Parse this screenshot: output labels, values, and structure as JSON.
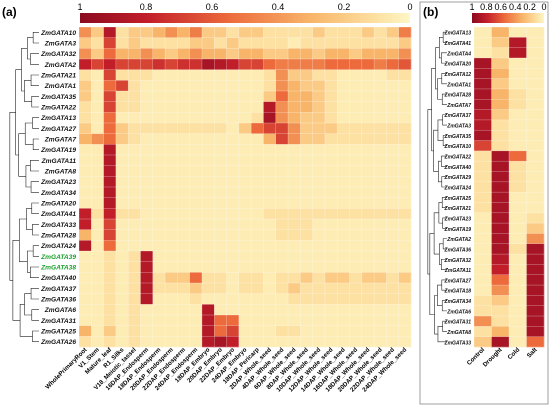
{
  "panel_a": {
    "label": "(a)",
    "colorbar_ticks": [
      "1",
      "0.8",
      "0.6",
      "0.4",
      "0.2",
      "0"
    ]
  },
  "panel_b": {
    "label": "(b)",
    "colorbar_ticks": [
      "1",
      "0.8",
      "0.6",
      "0.4",
      "0.2",
      "0"
    ]
  },
  "colors": {
    "low": "#fdf6c6",
    "mid_low": "#fde1a2",
    "mid": "#f8b56a",
    "mid_high": "#ec6a3c",
    "high": "#b8162a",
    "max": "#8b0a1f",
    "highlight_label": "#1aa02a"
  },
  "chart_data": [
    {
      "type": "heatmap",
      "panel": "(a)",
      "colorbar_ticks": [
        1,
        0.8,
        0.6,
        0.4,
        0.2,
        0
      ],
      "rows": [
        "ZmGATA10",
        "ZmGATA3",
        "ZmGATA32",
        "ZmGATA2",
        "ZmGATA21",
        "ZmGATA1",
        "ZmGATA35",
        "ZmGATA22",
        "ZmGATA13",
        "ZmGATA27",
        "ZmGATA7",
        "ZmGATA19",
        "ZmGATA11",
        "ZmGATA8",
        "ZmGATA23",
        "ZmGATA34",
        "ZmGATA20",
        "ZmGATA41",
        "ZmGATA33",
        "ZmGATA28",
        "ZmGATA24",
        "ZmGATA39",
        "ZmGATA38",
        "ZmGATA40",
        "ZmGATA37",
        "ZmGATA36",
        "ZmGATA6",
        "ZmGATA31",
        "ZmGATA25",
        "ZmGATA26"
      ],
      "highlight_rows": [
        "ZmGATA39",
        "ZmGATA38"
      ],
      "columns": [
        "WholePrimaryRoot",
        "V1_Stem",
        "Mature_leaf",
        "R1_Silks",
        "V18_Meiotic_tassel",
        "16DAP_Endosperm",
        "18DAP_Endosperm",
        "20DAP_Endosperm",
        "22DAP_Endosperm",
        "24DAP_Endosperm",
        "18DAP_Embryo",
        "20DAP_Embryo",
        "22DAP_Embryo",
        "24DAP_Embryo",
        "18DAP_Pericarp",
        "2DAP_Whole_seed",
        "4DAP_Whole_seed",
        "6DAP_Whole_seed",
        "8DAP_Whole_seed",
        "10DAP_Whole_seed",
        "12DAP_Whole_seed",
        "14DAP_Whole_seed",
        "16DAP_Whole_seed",
        "18DAP_Whole_seed",
        "20DAP_Whole_seed",
        "22DAP_Whole_seed",
        "24DAP_Whole_seed"
      ],
      "values": [
        [
          0.5,
          0.3,
          0.85,
          0.2,
          0.3,
          0.3,
          0.4,
          0.5,
          0.4,
          0.55,
          0.3,
          0.3,
          0.2,
          0.3,
          0.3,
          0.2,
          0.2,
          0.2,
          0.2,
          0.3,
          0.2,
          0.2,
          0.2,
          0.3,
          0.2,
          0.3,
          0.55
        ],
        [
          0.3,
          0.2,
          0.7,
          0.2,
          0.3,
          0.2,
          0.2,
          0.2,
          0.2,
          0.3,
          0.3,
          0.2,
          0.3,
          0.2,
          0.2,
          0.2,
          0.2,
          0.1,
          0.2,
          0.2,
          0.2,
          0.2,
          0.2,
          0.2,
          0.2,
          0.2,
          0.3
        ],
        [
          0.5,
          0.3,
          0.6,
          0.4,
          0.4,
          0.5,
          0.4,
          0.3,
          0.4,
          0.5,
          0.4,
          0.4,
          0.3,
          0.4,
          0.4,
          0.3,
          0.3,
          0.4,
          0.4,
          0.3,
          0.4,
          0.4,
          0.3,
          0.4,
          0.4,
          0.4,
          0.5
        ],
        [
          0.8,
          0.7,
          0.8,
          0.7,
          0.7,
          0.7,
          0.75,
          0.7,
          0.75,
          0.75,
          0.9,
          0.85,
          0.8,
          0.7,
          0.7,
          0.6,
          0.55,
          0.55,
          0.55,
          0.55,
          0.6,
          0.6,
          0.6,
          0.6,
          0.55,
          0.6,
          0.65
        ],
        [
          0.2,
          0.1,
          0.7,
          0.2,
          0.2,
          0.2,
          0.1,
          0.1,
          0.1,
          0.1,
          0.1,
          0.1,
          0.1,
          0.1,
          0.1,
          0.2,
          0.5,
          0.3,
          0.3,
          0.2,
          0.2,
          0.1,
          0.1,
          0.1,
          0.1,
          0.2,
          0.2
        ],
        [
          0.3,
          0.1,
          0.6,
          0.7,
          0.2,
          0.1,
          0.1,
          0.1,
          0.1,
          0.1,
          0.1,
          0.1,
          0.1,
          0.1,
          0.1,
          0.2,
          0.5,
          0.4,
          0.3,
          0.3,
          0.2,
          0.1,
          0.1,
          0.1,
          0.1,
          0.1,
          0.1
        ],
        [
          0.3,
          0.1,
          0.7,
          0.2,
          0.2,
          0.1,
          0.1,
          0.1,
          0.1,
          0.1,
          0.1,
          0.1,
          0.1,
          0.1,
          0.1,
          0.3,
          0.6,
          0.4,
          0.4,
          0.3,
          0.2,
          0.1,
          0.1,
          0.1,
          0.1,
          0.1,
          0.1
        ],
        [
          0.2,
          0.1,
          0.7,
          0.2,
          0.2,
          0.1,
          0.1,
          0.1,
          0.1,
          0.1,
          0.1,
          0.1,
          0.1,
          0.1,
          0.1,
          0.85,
          0.5,
          0.4,
          0.4,
          0.3,
          0.2,
          0.1,
          0.1,
          0.1,
          0.1,
          0.1,
          0.1
        ],
        [
          0.2,
          0.1,
          0.6,
          0.1,
          0.1,
          0.1,
          0.1,
          0.1,
          0.1,
          0.1,
          0.1,
          0.1,
          0.1,
          0.1,
          0.2,
          0.9,
          0.5,
          0.4,
          0.3,
          0.3,
          0.2,
          0.1,
          0.1,
          0.1,
          0.1,
          0.1,
          0.1
        ],
        [
          0.3,
          0.1,
          0.6,
          0.3,
          0.2,
          0.2,
          0.2,
          0.2,
          0.2,
          0.2,
          0.2,
          0.2,
          0.1,
          0.3,
          0.6,
          0.7,
          0.7,
          0.5,
          0.3,
          0.3,
          0.3,
          0.2,
          0.2,
          0.2,
          0.2,
          0.2,
          0.2
        ],
        [
          0.4,
          0.5,
          0.6,
          0.3,
          0.2,
          0.1,
          0.1,
          0.1,
          0.1,
          0.1,
          0.1,
          0.1,
          0.1,
          0.1,
          0.1,
          0.4,
          0.7,
          0.5,
          0.3,
          0.3,
          0.2,
          0.2,
          0.2,
          0.2,
          0.2,
          0.2,
          0.2
        ],
        [
          0.1,
          0.1,
          0.85,
          0.1,
          0.1,
          0.1,
          0.1,
          0.1,
          0.1,
          0.1,
          0.1,
          0.1,
          0.1,
          0.1,
          0.1,
          0.1,
          0.1,
          0.1,
          0.1,
          0.1,
          0.1,
          0.1,
          0.1,
          0.1,
          0.1,
          0.1,
          0.1
        ],
        [
          0.1,
          0.1,
          0.85,
          0.1,
          0.1,
          0.1,
          0.1,
          0.1,
          0.1,
          0.1,
          0.1,
          0.1,
          0.1,
          0.1,
          0.1,
          0.1,
          0.1,
          0.1,
          0.1,
          0.1,
          0.1,
          0.1,
          0.1,
          0.1,
          0.1,
          0.1,
          0.1
        ],
        [
          0.1,
          0.1,
          0.85,
          0.1,
          0.1,
          0.1,
          0.1,
          0.1,
          0.1,
          0.1,
          0.1,
          0.1,
          0.1,
          0.1,
          0.1,
          0.1,
          0.1,
          0.1,
          0.1,
          0.1,
          0.1,
          0.1,
          0.1,
          0.1,
          0.1,
          0.1,
          0.1
        ],
        [
          0.1,
          0.1,
          0.85,
          0.1,
          0.1,
          0.1,
          0.1,
          0.1,
          0.1,
          0.1,
          0.1,
          0.1,
          0.1,
          0.1,
          0.1,
          0.1,
          0.1,
          0.1,
          0.1,
          0.1,
          0.1,
          0.1,
          0.1,
          0.1,
          0.1,
          0.1,
          0.1
        ],
        [
          0.1,
          0.1,
          0.85,
          0.1,
          0.1,
          0.1,
          0.1,
          0.1,
          0.1,
          0.1,
          0.1,
          0.1,
          0.1,
          0.1,
          0.1,
          0.1,
          0.1,
          0.1,
          0.1,
          0.1,
          0.1,
          0.1,
          0.1,
          0.1,
          0.1,
          0.1,
          0.1
        ],
        [
          0.1,
          0.1,
          0.85,
          0.1,
          0.1,
          0.1,
          0.1,
          0.1,
          0.1,
          0.1,
          0.1,
          0.1,
          0.1,
          0.1,
          0.1,
          0.1,
          0.1,
          0.1,
          0.1,
          0.1,
          0.1,
          0.1,
          0.1,
          0.1,
          0.1,
          0.1,
          0.1
        ],
        [
          0.8,
          0.2,
          0.8,
          0.2,
          0.2,
          0.1,
          0.1,
          0.1,
          0.1,
          0.1,
          0.1,
          0.1,
          0.1,
          0.1,
          0.1,
          0.2,
          0.2,
          0.2,
          0.2,
          0.2,
          0.2,
          0.2,
          0.2,
          0.2,
          0.2,
          0.2,
          0.2
        ],
        [
          0.8,
          0.1,
          0.7,
          0.1,
          0.1,
          0.1,
          0.1,
          0.1,
          0.1,
          0.1,
          0.1,
          0.1,
          0.1,
          0.1,
          0.1,
          0.1,
          0.2,
          0.2,
          0.2,
          0.1,
          0.1,
          0.1,
          0.1,
          0.1,
          0.1,
          0.1,
          0.1
        ],
        [
          0.4,
          0.1,
          0.7,
          0.1,
          0.1,
          0.1,
          0.1,
          0.1,
          0.1,
          0.1,
          0.1,
          0.1,
          0.1,
          0.1,
          0.1,
          0.1,
          0.2,
          0.2,
          0.2,
          0.1,
          0.1,
          0.1,
          0.1,
          0.1,
          0.1,
          0.1,
          0.1
        ],
        [
          0.85,
          0.1,
          0.6,
          0.1,
          0.1,
          0.1,
          0.1,
          0.1,
          0.1,
          0.1,
          0.1,
          0.1,
          0.1,
          0.1,
          0.1,
          0.1,
          0.1,
          0.1,
          0.1,
          0.1,
          0.1,
          0.1,
          0.1,
          0.1,
          0.1,
          0.1,
          0.1
        ],
        [
          0.1,
          0.1,
          0.2,
          0.1,
          0.2,
          0.85,
          0.1,
          0.1,
          0.1,
          0.1,
          0.1,
          0.1,
          0.1,
          0.1,
          0.1,
          0.1,
          0.1,
          0.1,
          0.1,
          0.1,
          0.1,
          0.1,
          0.1,
          0.1,
          0.1,
          0.1,
          0.1
        ],
        [
          0.1,
          0.1,
          0.2,
          0.1,
          0.2,
          0.85,
          0.1,
          0.1,
          0.1,
          0.1,
          0.1,
          0.1,
          0.1,
          0.1,
          0.1,
          0.1,
          0.1,
          0.1,
          0.1,
          0.1,
          0.1,
          0.1,
          0.1,
          0.1,
          0.1,
          0.1,
          0.1
        ],
        [
          0.1,
          0.1,
          0.2,
          0.1,
          0.2,
          0.85,
          0.2,
          0.3,
          0.3,
          0.6,
          0.2,
          0.2,
          0.1,
          0.2,
          0.2,
          0.1,
          0.2,
          0.2,
          0.3,
          0.2,
          0.3,
          0.3,
          0.2,
          0.3,
          0.3,
          0.2,
          0.3
        ],
        [
          0.1,
          0.1,
          0.2,
          0.1,
          0.2,
          0.85,
          0.2,
          0.2,
          0.2,
          0.3,
          0.2,
          0.2,
          0.1,
          0.2,
          0.2,
          0.1,
          0.2,
          0.3,
          0.2,
          0.2,
          0.2,
          0.2,
          0.2,
          0.2,
          0.2,
          0.2,
          0.2
        ],
        [
          0.1,
          0.1,
          0.2,
          0.1,
          0.2,
          0.85,
          0.1,
          0.1,
          0.1,
          0.2,
          0.1,
          0.1,
          0.1,
          0.1,
          0.1,
          0.1,
          0.1,
          0.2,
          0.2,
          0.2,
          0.2,
          0.2,
          0.2,
          0.2,
          0.2,
          0.2,
          0.2
        ],
        [
          0.1,
          0.1,
          0.2,
          0.1,
          0.2,
          0.1,
          0.1,
          0.1,
          0.1,
          0.1,
          0.85,
          0.1,
          0.1,
          0.1,
          0.1,
          0.1,
          0.1,
          0.1,
          0.1,
          0.1,
          0.1,
          0.1,
          0.1,
          0.1,
          0.1,
          0.1,
          0.1
        ],
        [
          0.1,
          0.1,
          0.2,
          0.1,
          0.2,
          0.1,
          0.1,
          0.1,
          0.1,
          0.1,
          0.85,
          0.6,
          0.6,
          0.1,
          0.1,
          0.1,
          0.1,
          0.1,
          0.1,
          0.1,
          0.1,
          0.1,
          0.1,
          0.1,
          0.1,
          0.1,
          0.1
        ],
        [
          0.4,
          0.1,
          0.3,
          0.1,
          0.2,
          0.1,
          0.1,
          0.1,
          0.1,
          0.1,
          0.85,
          0.6,
          0.7,
          0.1,
          0.1,
          0.1,
          0.2,
          0.2,
          0.1,
          0.1,
          0.1,
          0.1,
          0.1,
          0.1,
          0.1,
          0.1,
          0.1
        ],
        [
          0.2,
          0.1,
          0.2,
          0.1,
          0.2,
          0.1,
          0.1,
          0.1,
          0.1,
          0.1,
          0.85,
          0.9,
          0.8,
          0.1,
          0.1,
          0.1,
          0.1,
          0.1,
          0.1,
          0.1,
          0.1,
          0.1,
          0.1,
          0.1,
          0.1,
          0.1,
          0.1
        ]
      ]
    },
    {
      "type": "heatmap",
      "panel": "(b)",
      "colorbar_ticks": [
        1,
        0.8,
        0.6,
        0.4,
        0.2,
        0
      ],
      "rows": [
        "ZmGATA13",
        "ZmGATA41",
        "ZmGATA4",
        "ZmGATA20",
        "ZmGATA12",
        "ZmGATA1",
        "ZmGATA28",
        "ZmGATA7",
        "ZmGATA37",
        "ZmGATA3",
        "ZmGATA35",
        "ZmGATA10",
        "ZmGATA22",
        "ZmGATA40",
        "ZmGATA29",
        "ZmGATA24",
        "ZmGATA25",
        "ZmGATA21",
        "ZmGATA23",
        "ZmGATA19",
        "ZmGATA2",
        "ZmGATA36",
        "ZmGATA32",
        "ZmGATA11",
        "ZmGATA27",
        "ZmGATA18",
        "ZmGATA34",
        "ZmGATA6",
        "ZmGATA31",
        "ZmGATA8",
        "ZmGATA33"
      ],
      "columns": [
        "Control",
        "Drought",
        "Cold",
        "Salt"
      ],
      "values": [
        [
          0.1,
          0.4,
          0.1,
          0.1
        ],
        [
          0.1,
          0.3,
          0.85,
          0.1
        ],
        [
          0.1,
          0.2,
          0.85,
          0.1
        ],
        [
          0.9,
          0.3,
          0.1,
          0.1
        ],
        [
          0.9,
          0.4,
          0.1,
          0.1
        ],
        [
          0.9,
          0.3,
          0.1,
          0.1
        ],
        [
          0.9,
          0.4,
          0.2,
          0.1
        ],
        [
          0.9,
          0.4,
          0.2,
          0.1
        ],
        [
          0.85,
          0.3,
          0.1,
          0.1
        ],
        [
          0.85,
          0.2,
          0.1,
          0.1
        ],
        [
          0.9,
          0.2,
          0.1,
          0.1
        ],
        [
          0.7,
          0.2,
          0.1,
          0.1
        ],
        [
          0.2,
          0.9,
          0.6,
          0.1
        ],
        [
          0.2,
          0.9,
          0.2,
          0.1
        ],
        [
          0.2,
          0.9,
          0.2,
          0.1
        ],
        [
          0.2,
          0.9,
          0.2,
          0.1
        ],
        [
          0.2,
          0.9,
          0.1,
          0.1
        ],
        [
          0.2,
          0.9,
          0.1,
          0.1
        ],
        [
          0.1,
          0.9,
          0.1,
          0.2
        ],
        [
          0.1,
          0.9,
          0.1,
          0.3
        ],
        [
          0.1,
          0.9,
          0.1,
          0.5
        ],
        [
          0.1,
          0.9,
          0.2,
          0.9
        ],
        [
          0.1,
          0.85,
          0.1,
          0.9
        ],
        [
          0.1,
          0.8,
          0.1,
          0.9
        ],
        [
          0.1,
          0.6,
          0.1,
          0.9
        ],
        [
          0.1,
          0.5,
          0.1,
          0.9
        ],
        [
          0.2,
          0.3,
          0.1,
          0.9
        ],
        [
          0.2,
          0.2,
          0.1,
          0.9
        ],
        [
          0.5,
          0.2,
          0.1,
          0.9
        ],
        [
          0.2,
          0.4,
          0.1,
          0.9
        ],
        [
          0.3,
          0.9,
          0.1,
          0.6
        ]
      ]
    }
  ]
}
